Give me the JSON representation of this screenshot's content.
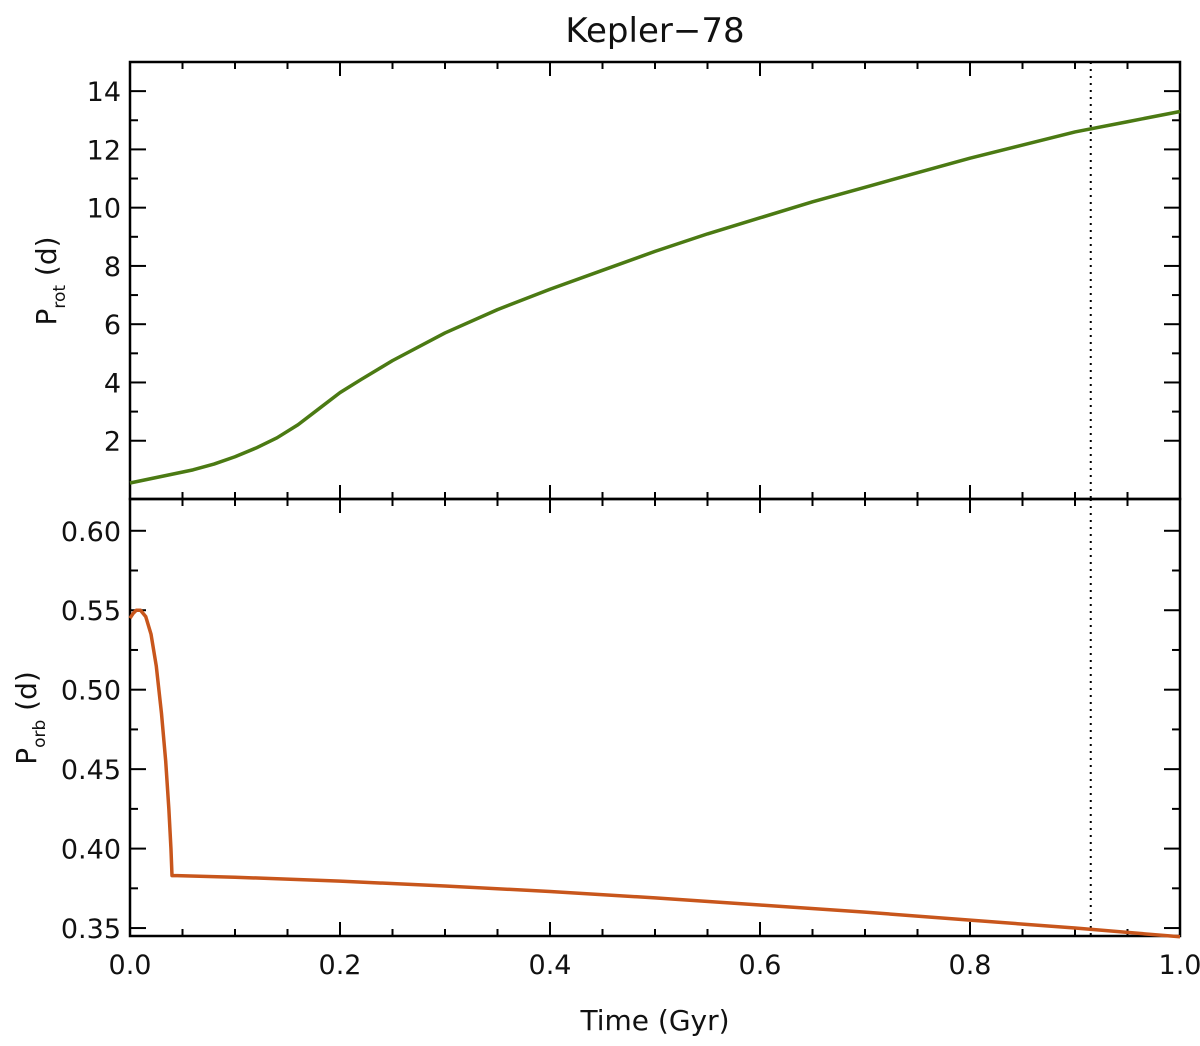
{
  "chart_data": [
    {
      "type": "line",
      "title": "Kepler−78",
      "xlabel": "",
      "ylabel": {
        "main": "P",
        "sub": "rot",
        "suffix": " (d)"
      },
      "xlim": [
        0.0,
        1.0
      ],
      "ylim": [
        0.0,
        15.0
      ],
      "yticks": [
        2,
        4,
        6,
        8,
        10,
        12,
        14
      ],
      "ytick_labels": [
        "2",
        "4",
        "6",
        "8",
        "10",
        "12",
        "14"
      ],
      "color": "#4b7a13",
      "series": [
        {
          "x": [
            0.0,
            0.02,
            0.04,
            0.06,
            0.08,
            0.1,
            0.12,
            0.14,
            0.16,
            0.18,
            0.2,
            0.22,
            0.25,
            0.3,
            0.35,
            0.4,
            0.45,
            0.5,
            0.55,
            0.6,
            0.65,
            0.7,
            0.75,
            0.8,
            0.85,
            0.9,
            0.95,
            1.0
          ],
          "values": [
            0.55,
            0.7,
            0.85,
            1.0,
            1.2,
            1.45,
            1.75,
            2.1,
            2.55,
            3.1,
            3.65,
            4.1,
            4.75,
            5.7,
            6.5,
            7.2,
            7.85,
            8.5,
            9.1,
            9.65,
            10.2,
            10.7,
            11.2,
            11.7,
            12.15,
            12.6,
            12.95,
            13.3
          ]
        }
      ],
      "vline_x": 0.915
    },
    {
      "type": "line",
      "xlabel": "Time (Gyr)",
      "ylabel": {
        "main": "P",
        "sub": "orb",
        "suffix": " (d)"
      },
      "xlim": [
        0.0,
        1.0
      ],
      "ylim": [
        0.345,
        0.62
      ],
      "yticks": [
        0.35,
        0.4,
        0.45,
        0.5,
        0.55,
        0.6
      ],
      "ytick_labels": [
        "0.35",
        "0.40",
        "0.45",
        "0.50",
        "0.55",
        "0.60"
      ],
      "xticks": [
        0.0,
        0.2,
        0.4,
        0.6,
        0.8,
        1.0
      ],
      "xtick_labels": [
        "0.0",
        "0.2",
        "0.4",
        "0.6",
        "0.8",
        "1.0"
      ],
      "color": "#c8561c",
      "series": [
        {
          "x": [
            0.0,
            0.003,
            0.006,
            0.01,
            0.015,
            0.02,
            0.025,
            0.03,
            0.034,
            0.037,
            0.039,
            0.04,
            0.042,
            0.045,
            0.1,
            0.2,
            0.3,
            0.4,
            0.5,
            0.6,
            0.7,
            0.8,
            0.9,
            1.0
          ],
          "values": [
            0.545,
            0.548,
            0.55,
            0.55,
            0.546,
            0.535,
            0.515,
            0.485,
            0.455,
            0.425,
            0.4,
            0.383,
            0.383,
            0.383,
            0.382,
            0.3795,
            0.3765,
            0.373,
            0.369,
            0.3645,
            0.36,
            0.355,
            0.35,
            0.3445
          ]
        }
      ],
      "vline_x": 0.915
    }
  ]
}
